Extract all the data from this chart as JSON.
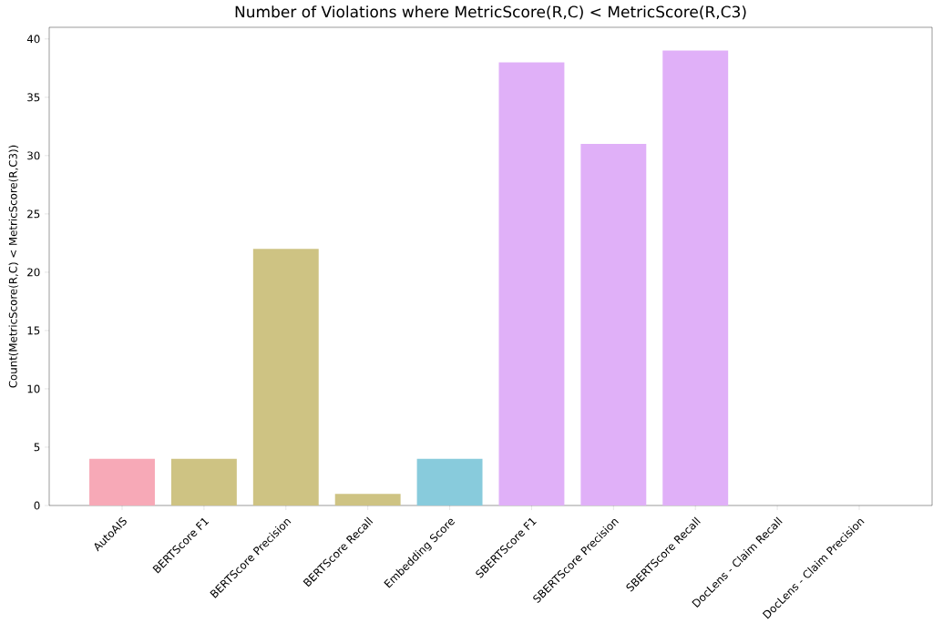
{
  "chart_data": {
    "type": "bar",
    "title": "Number of Violations where MetricScore(R,C) < MetricScore(R,C3)",
    "ylabel": "Count(MetricScore(R,C) < MetricScore(R,C3))",
    "categories": [
      "AutoAIS",
      "BERTScore F1",
      "BERTScore Precision",
      "BERTScore Recall",
      "Embedding Score",
      "SBERTScore F1",
      "SBERTScore Precision",
      "SBERTScore Recall",
      "DocLens - Claim Recall",
      "DocLens - Claim Precision"
    ],
    "values": [
      4,
      4,
      22,
      1,
      4,
      38,
      31,
      39,
      0,
      0
    ],
    "colors": [
      "#f7a9b7",
      "#cec383",
      "#cec383",
      "#cec383",
      "#88cbdc",
      "#e0b0f8",
      "#e0b0f8",
      "#e0b0f8",
      "#9fd8a4",
      "#9fd8a4"
    ],
    "ylim": [
      0,
      41
    ],
    "yticks": [
      0,
      5,
      10,
      15,
      20,
      25,
      30,
      35,
      40
    ]
  }
}
